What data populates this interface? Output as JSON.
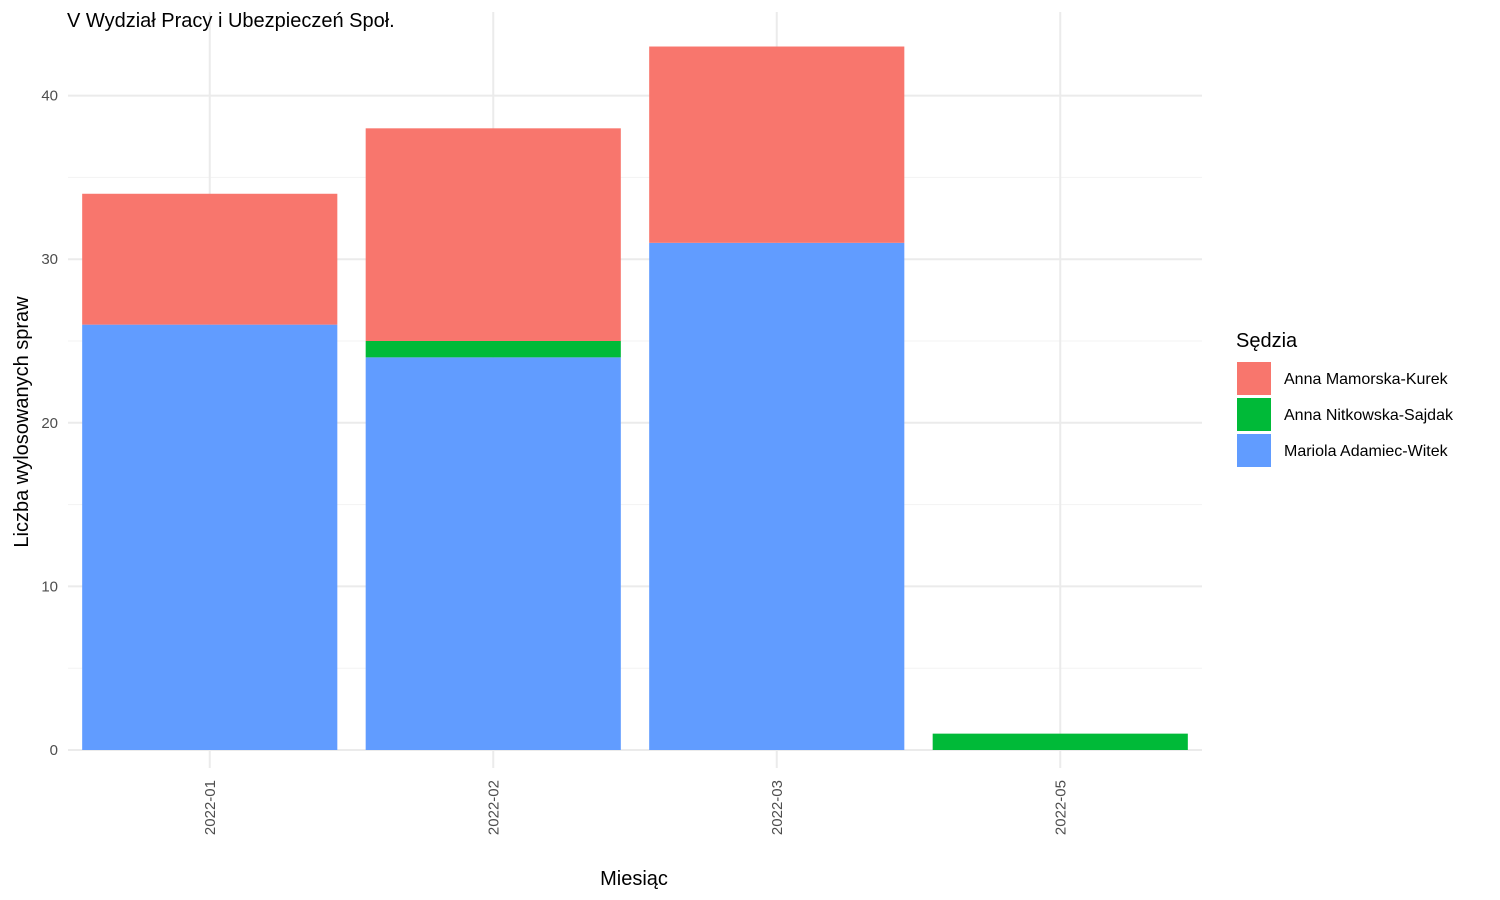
{
  "chart_data": {
    "type": "bar",
    "stacked": true,
    "title": "V Wydział Pracy i Ubezpieczeń Społ.",
    "xlabel": "Miesiąc",
    "ylabel": "Liczba wylosowanych spraw",
    "categories": [
      "2022-01",
      "2022-02",
      "2022-03",
      "2022-05"
    ],
    "yticks": [
      0,
      10,
      20,
      30,
      40
    ],
    "ylim": [
      0,
      43
    ],
    "grid": true,
    "legend_position": "right",
    "legend_title": "Sędzia",
    "stack_order": [
      "Mariola Adamiec-Witek",
      "Anna Nitkowska-Sajdak",
      "Anna Mamorska-Kurek"
    ],
    "series": [
      {
        "name": "Anna Mamorska-Kurek",
        "color": "#F8766D",
        "values": [
          8,
          13,
          12,
          0
        ]
      },
      {
        "name": "Anna Nitkowska-Sajdak",
        "color": "#00BA38",
        "values": [
          0,
          1,
          0,
          1
        ]
      },
      {
        "name": "Mariola Adamiec-Witek",
        "color": "#619CFF",
        "values": [
          26,
          24,
          31,
          0
        ]
      }
    ]
  }
}
